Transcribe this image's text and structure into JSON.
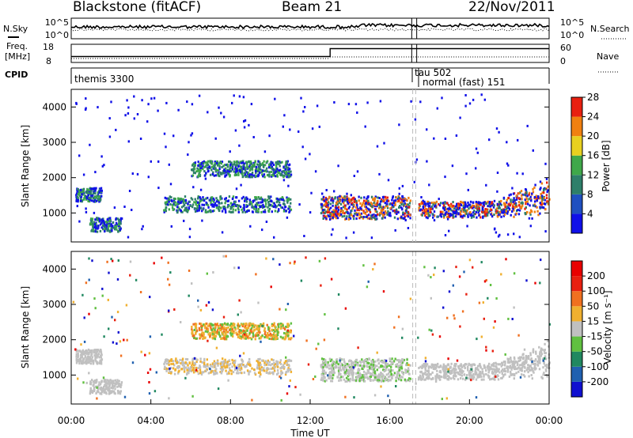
{
  "chart_data": [
    {
      "type": "line",
      "title": "Blackstone (fitACF)",
      "subtitle": "Beam 21",
      "date": "22/Nov/2011",
      "panel": "status",
      "left_labels": {
        "nsky": "N.Sky",
        "freq": "Freq.",
        "freq_unit": "[MHz]",
        "cpid": "CPID"
      },
      "right_labels": {
        "nsearch": "N.Search",
        "nave": "Nave"
      },
      "nsky_ticks": [
        "10^5",
        "10^0"
      ],
      "nsearch_ticks": [
        "10^5",
        "10^0"
      ],
      "freq_ticks": [
        "18",
        "8"
      ],
      "nave_ticks": [
        "60",
        "0"
      ],
      "freq_series": {
        "name": "Freq.",
        "x": [
          "00:00",
          "13:00",
          "13:00",
          "17:10",
          "17:20",
          "24:00"
        ],
        "y": [
          10.5,
          10.5,
          16.5,
          16.5,
          16.5,
          16.5
        ]
      },
      "cpid_segments": [
        {
          "label": "themis 3300",
          "start": "00:00",
          "end": "17:05"
        },
        {
          "label": "tau 502",
          "start": "17:05",
          "end": "17:25"
        },
        {
          "label": "normal (fast) 151",
          "start": "17:25",
          "end": "24:00"
        }
      ]
    },
    {
      "type": "heatmap",
      "panel": "power",
      "ylabel": "Slant Range [km]",
      "yticks": [
        "1000",
        "2000",
        "3000",
        "4000"
      ],
      "ylim": [
        180,
        4500
      ],
      "colorbar_label": "Power [dB]",
      "colorbar_ticks": [
        "4",
        "8",
        "12",
        "16",
        "20",
        "24",
        "28"
      ],
      "colorbar_colors": [
        "#1010e8",
        "#2050c0",
        "#2e7f6a",
        "#3fa84a",
        "#e8d020",
        "#f08010",
        "#e82010"
      ],
      "clim": [
        0,
        32
      ],
      "scatter_regions": [
        {
          "x": [
            0.2,
            1.5
          ],
          "range": [
            1300,
            1800
          ]
        },
        {
          "x": [
            0.8,
            2.5
          ],
          "range": [
            450,
            900
          ]
        },
        {
          "x": [
            4.5,
            11.0
          ],
          "range": [
            1050,
            1550
          ]
        },
        {
          "x": [
            6.0,
            11.0
          ],
          "range": [
            2000,
            2500
          ]
        },
        {
          "x": [
            12.5,
            24.0
          ],
          "range": [
            850,
            1500
          ]
        }
      ]
    },
    {
      "type": "heatmap",
      "panel": "velocity",
      "ylabel": "Slant Range [km]",
      "yticks": [
        "1000",
        "2000",
        "3000",
        "4000"
      ],
      "ylim": [
        180,
        4500
      ],
      "xlabel": "Time UT",
      "xticks": [
        "00:00",
        "04:00",
        "08:00",
        "12:00",
        "16:00",
        "20:00",
        "00:00"
      ],
      "colorbar_label": "Velocity [m s⁻¹]",
      "colorbar_ticks": [
        "200",
        "100",
        "50",
        "15",
        "-15",
        "-50",
        "-100",
        "-200"
      ],
      "colorbar_colors": [
        "#1010d0",
        "#2060b0",
        "#208860",
        "#60c040",
        "#c0c0c0",
        "#f0b030",
        "#f07020",
        "#e82010",
        "#e80000"
      ],
      "clim": [
        -250,
        250
      ]
    }
  ]
}
